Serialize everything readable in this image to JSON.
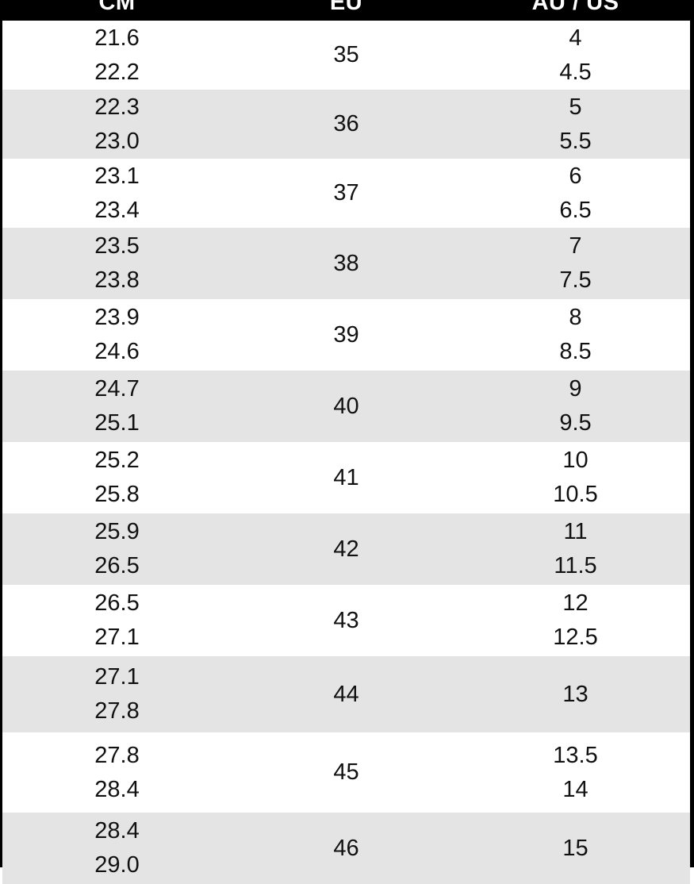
{
  "table": {
    "columns": [
      "CM",
      "EU",
      "AU / US"
    ],
    "rows": [
      {
        "cm": [
          "21.6",
          "22.2"
        ],
        "eu": "35",
        "au_us": [
          "4",
          "4.5"
        ]
      },
      {
        "cm": [
          "22.3",
          "23.0"
        ],
        "eu": "36",
        "au_us": [
          "5",
          "5.5"
        ]
      },
      {
        "cm": [
          "23.1",
          "23.4"
        ],
        "eu": "37",
        "au_us": [
          "6",
          "6.5"
        ]
      },
      {
        "cm": [
          "23.5",
          "23.8"
        ],
        "eu": "38",
        "au_us": [
          "7",
          "7.5"
        ]
      },
      {
        "cm": [
          "23.9",
          "24.6"
        ],
        "eu": "39",
        "au_us": [
          "8",
          "8.5"
        ]
      },
      {
        "cm": [
          "24.7",
          "25.1"
        ],
        "eu": "40",
        "au_us": [
          "9",
          "9.5"
        ]
      },
      {
        "cm": [
          "25.2",
          "25.8"
        ],
        "eu": "41",
        "au_us": [
          "10",
          "10.5"
        ]
      },
      {
        "cm": [
          "25.9",
          "26.5"
        ],
        "eu": "42",
        "au_us": [
          "11",
          "11.5"
        ]
      },
      {
        "cm": [
          "26.5",
          "27.1"
        ],
        "eu": "43",
        "au_us": [
          "12",
          "12.5"
        ]
      },
      {
        "cm": [
          "27.1",
          "27.8"
        ],
        "eu": "44",
        "au_us": [
          "13"
        ]
      },
      {
        "cm": [
          "27.8",
          "28.4"
        ],
        "eu": "45",
        "au_us": [
          "13.5",
          "14"
        ]
      },
      {
        "cm": [
          "28.4",
          "29.0"
        ],
        "eu": "46",
        "au_us": [
          "15"
        ]
      }
    ],
    "colors": {
      "header_bg": "#000000",
      "header_text": "#ffffff",
      "row_alt_bg": "#e4e4e4",
      "text": "#111111",
      "border": "#000000"
    }
  }
}
